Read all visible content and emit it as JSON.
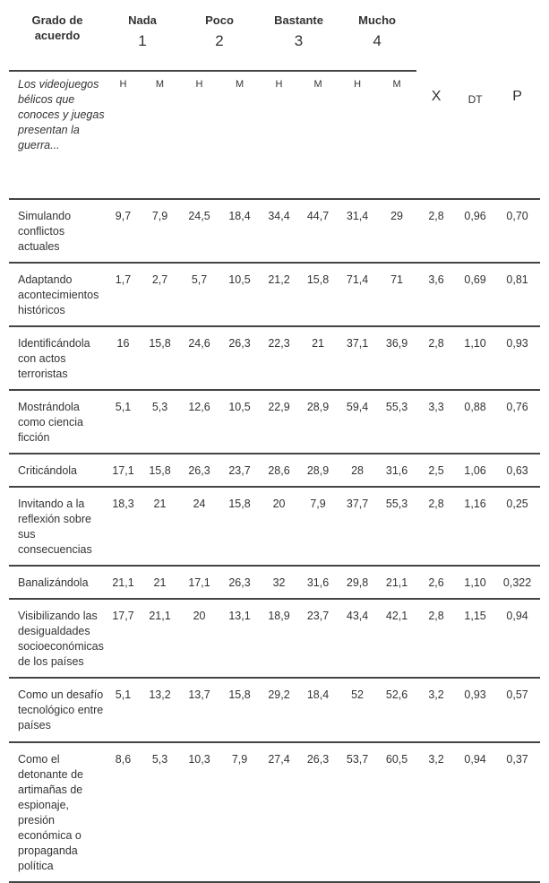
{
  "header": {
    "corner": "Grado de acuerdo",
    "levels": [
      {
        "label": "Nada",
        "number": "1"
      },
      {
        "label": "Poco",
        "number": "2"
      },
      {
        "label": "Bastante",
        "number": "3"
      },
      {
        "label": "Mucho",
        "number": "4"
      }
    ],
    "question": "Los videojuegos bélicos que conoces y juegas presentan la guerra...",
    "sex": [
      "H",
      "M",
      "H",
      "M",
      "H",
      "M",
      "H",
      "M"
    ],
    "stats": [
      "X",
      "DT",
      "P"
    ]
  },
  "rows": [
    {
      "label": "Simulando conflictos actuales",
      "values": [
        "9,7",
        "7,9",
        "24,5",
        "18,4",
        "34,4",
        "44,7",
        "31,4",
        "29",
        "2,8",
        "0,96",
        "0,70"
      ]
    },
    {
      "label": "Adaptando acontecimientos históricos",
      "values": [
        "1,7",
        "2,7",
        "5,7",
        "10,5",
        "21,2",
        "15,8",
        "71,4",
        "71",
        "3,6",
        "0,69",
        "0,81"
      ]
    },
    {
      "label": "Identificándola con actos terroristas",
      "values": [
        "16",
        "15,8",
        "24,6",
        "26,3",
        "22,3",
        "21",
        "37,1",
        "36,9",
        "2,8",
        "1,10",
        "0,93"
      ]
    },
    {
      "label": "Mostrándola como ciencia ficción",
      "values": [
        "5,1",
        "5,3",
        "12,6",
        "10,5",
        "22,9",
        "28,9",
        "59,4",
        "55,3",
        "3,3",
        "0,88",
        "0,76"
      ]
    },
    {
      "label": "Criticándola",
      "values": [
        "17,1",
        "15,8",
        "26,3",
        "23,7",
        "28,6",
        "28,9",
        "28",
        "31,6",
        "2,5",
        "1,06",
        "0,63"
      ]
    },
    {
      "label": "Invitando a la reflexión sobre sus consecuencias",
      "values": [
        "18,3",
        "21",
        "24",
        "15,8",
        "20",
        "7,9",
        "37,7",
        "55,3",
        "2,8",
        "1,16",
        "0,25"
      ]
    },
    {
      "label": "Banalizándola",
      "values": [
        "21,1",
        "21",
        "17,1",
        "26,3",
        "32",
        "31,6",
        "29,8",
        "21,1",
        "2,6",
        "1,10",
        "0,322"
      ]
    },
    {
      "label": "Visibilizando las desigualdades socioeconómicas de los países",
      "values": [
        "17,7",
        "21,1",
        "20",
        "13,1",
        "18,9",
        "23,7",
        "43,4",
        "42,1",
        "2,8",
        "1,15",
        "0,94"
      ]
    },
    {
      "label": "Como un desafío tecnológico entre países",
      "values": [
        "5,1",
        "13,2",
        "13,7",
        "15,8",
        "29,2",
        "18,4",
        "52",
        "52,6",
        "3,2",
        "0,93",
        "0,57"
      ]
    },
    {
      "label": "Como el detonante de artimañas de espionaje, presión económica o propaganda política",
      "values": [
        "8,6",
        "5,3",
        "10,3",
        "7,9",
        "27,4",
        "26,3",
        "53,7",
        "60,5",
        "3,2",
        "0,94",
        "0,37"
      ]
    }
  ]
}
